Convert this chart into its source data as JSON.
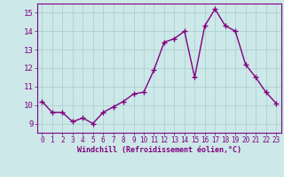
{
  "x": [
    0,
    1,
    2,
    3,
    4,
    5,
    6,
    7,
    8,
    9,
    10,
    11,
    12,
    13,
    14,
    15,
    16,
    17,
    18,
    19,
    20,
    21,
    22,
    23
  ],
  "y": [
    10.2,
    9.6,
    9.6,
    9.1,
    9.3,
    9.0,
    9.6,
    9.9,
    10.2,
    10.6,
    10.7,
    11.9,
    13.4,
    13.6,
    14.0,
    11.5,
    14.3,
    15.2,
    14.3,
    14.0,
    12.2,
    11.5,
    10.7,
    10.1
  ],
  "line_color": "#800080",
  "marker": "+",
  "marker_size": 4,
  "bg_color": "#cce8e8",
  "grid_color": "#aacccc",
  "xlabel": "Windchill (Refroidissement éolien,°C)",
  "xlabel_color": "#800080",
  "tick_color": "#800080",
  "ylim": [
    8.5,
    15.5
  ],
  "xlim": [
    -0.5,
    23.5
  ],
  "yticks": [
    9,
    10,
    11,
    12,
    13,
    14,
    15
  ],
  "xticks": [
    0,
    1,
    2,
    3,
    4,
    5,
    6,
    7,
    8,
    9,
    10,
    11,
    12,
    13,
    14,
    15,
    16,
    17,
    18,
    19,
    20,
    21,
    22,
    23
  ],
  "spine_color": "#800080",
  "line_width": 1.0,
  "marker_color": "#800080"
}
